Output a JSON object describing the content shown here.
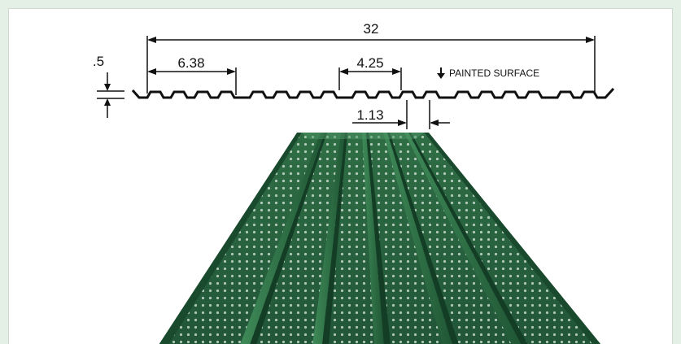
{
  "dimensions": {
    "overall_width": "32",
    "panel_module": "6.38",
    "rib_top": "4.25",
    "rib_height": ".5",
    "rib_base": "1.13"
  },
  "painted_surface_label": "PAINTED SURFACE",
  "colors": {
    "panel_green": "#2a6a40",
    "panel_dark": "#17422a",
    "perforation": "#d9e6dc",
    "background": "#e4efe5"
  }
}
